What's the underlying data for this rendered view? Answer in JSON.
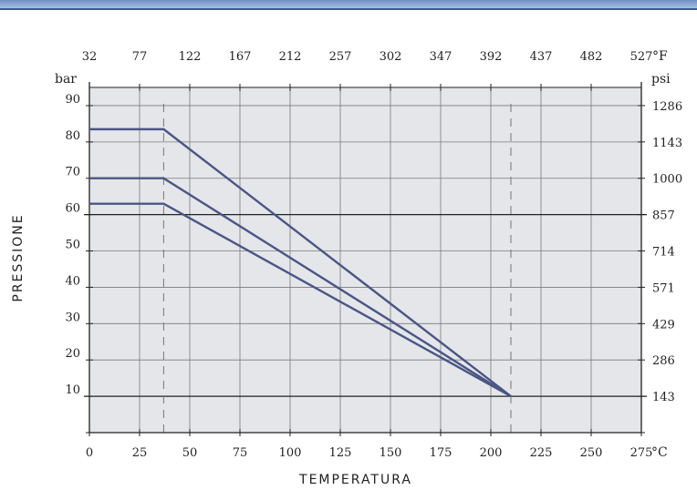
{
  "chart_data": {
    "type": "line",
    "xlabel": "TEMPERATURA",
    "ylabel": "PRESSIONE",
    "x_unit": "°C",
    "x2_unit": "°F",
    "y_unit": "bar",
    "y2_unit": "psi",
    "xlim": [
      0,
      275
    ],
    "ylim": [
      0,
      95
    ],
    "x_ticks": [
      "0",
      "25",
      "50",
      "75",
      "100",
      "125",
      "150",
      "175",
      "200",
      "225",
      "250",
      "275"
    ],
    "x2_ticks": [
      "32",
      "77",
      "122",
      "167",
      "212",
      "257",
      "302",
      "347",
      "392",
      "437",
      "482",
      "527"
    ],
    "y_ticks": [
      "10",
      "20",
      "30",
      "40",
      "50",
      "60",
      "70",
      "80",
      "90"
    ],
    "y2_ticks": [
      "143",
      "286",
      "429",
      "571",
      "714",
      "857",
      "1000",
      "1143",
      "1286"
    ],
    "grid": true,
    "reference_lines_x": [
      37,
      210
    ],
    "series": [
      {
        "x": [
          0,
          37,
          210
        ],
        "values": [
          83.5,
          83.5,
          10
        ]
      },
      {
        "x": [
          0,
          37,
          210
        ],
        "values": [
          70,
          70,
          10
        ]
      },
      {
        "x": [
          0,
          37,
          210
        ],
        "values": [
          63,
          63,
          10
        ]
      }
    ],
    "colors": {
      "line": "#4a5684",
      "grid": "#7a7a7a",
      "plot_bg": "#e4e6ea",
      "strong_grid": "#222222"
    }
  }
}
